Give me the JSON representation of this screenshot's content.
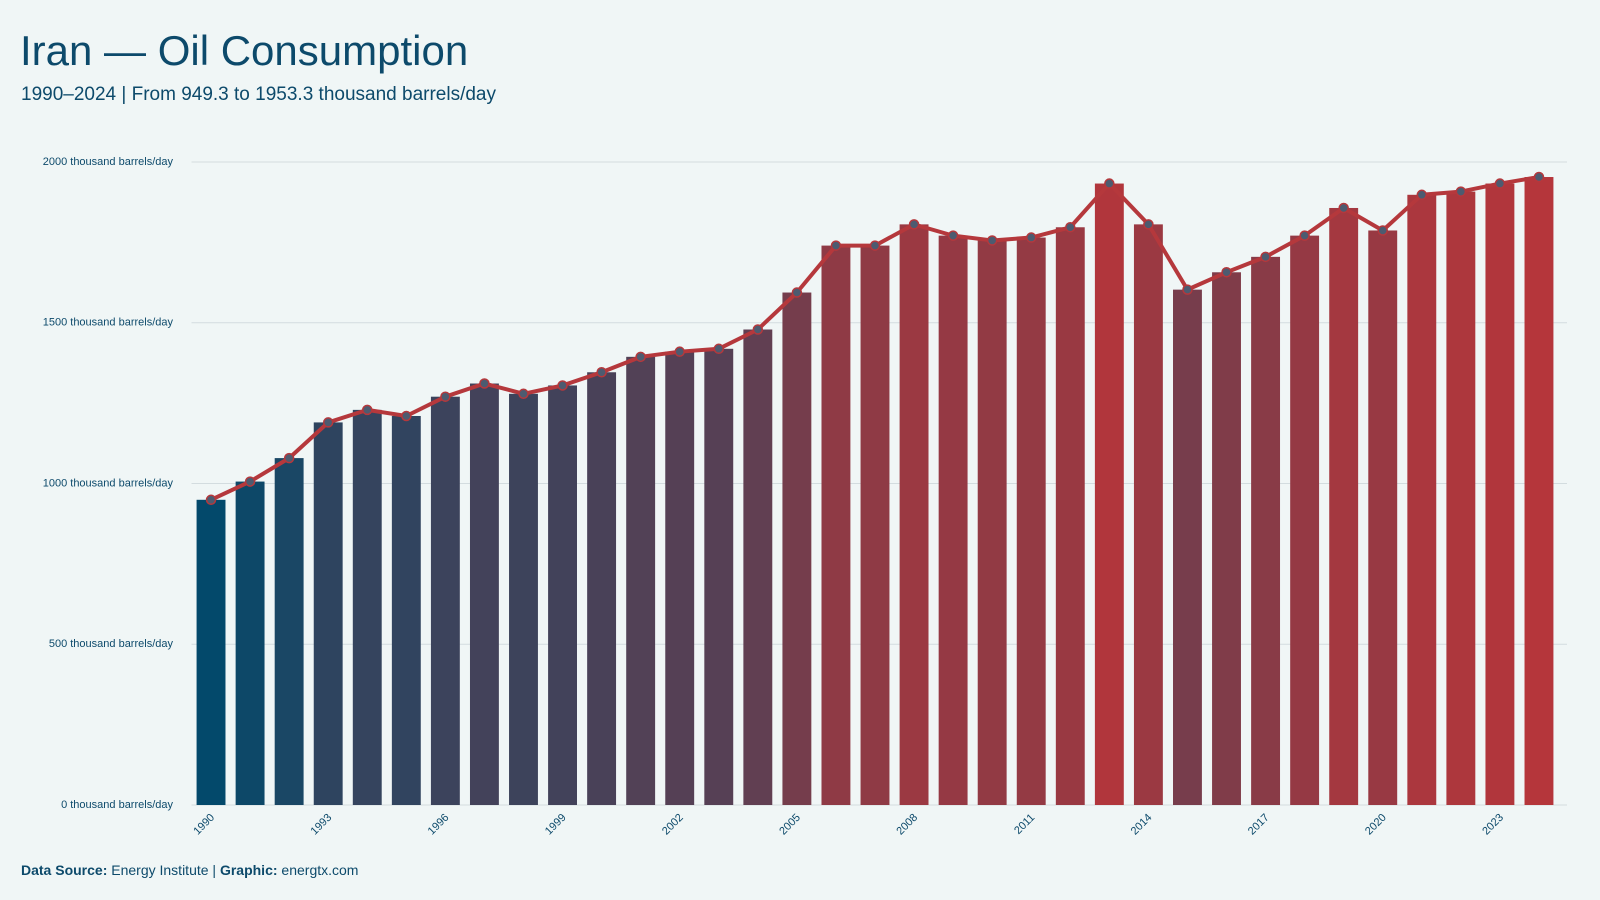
{
  "chart_data": {
    "type": "bar_line",
    "title": "Iran — Oil Consumption",
    "subtitle": "1990–2024 | From 949.3 to 1953.3 thousand barrels/day",
    "x": [
      1990,
      1991,
      1992,
      1993,
      1994,
      1995,
      1996,
      1997,
      1998,
      1999,
      2000,
      2001,
      2002,
      2003,
      2004,
      2005,
      2006,
      2007,
      2008,
      2009,
      2010,
      2011,
      2012,
      2013,
      2014,
      2015,
      2016,
      2017,
      2018,
      2019,
      2020,
      2021,
      2022,
      2023,
      2024
    ],
    "values": [
      949.3,
      1006,
      1079,
      1190,
      1229,
      1210,
      1270,
      1311,
      1279,
      1305,
      1346,
      1394,
      1410,
      1419,
      1479,
      1594,
      1740,
      1740,
      1806,
      1771,
      1756,
      1765,
      1797,
      1933,
      1806,
      1603,
      1657,
      1705,
      1771,
      1857,
      1787,
      1898,
      1908,
      1933,
      1953.3
    ],
    "xlim": [
      1989.5,
      2024.5
    ],
    "xticks": [
      1990,
      1993,
      1996,
      1999,
      2002,
      2005,
      2008,
      2011,
      2014,
      2017,
      2020,
      2023
    ],
    "ylim": [
      0,
      2000
    ],
    "yticks": [
      {
        "value": 0,
        "label": "0 thousand barrels/day"
      },
      {
        "value": 500,
        "label": "500 thousand barrels/day"
      },
      {
        "value": 1000,
        "label": "1000 thousand barrels/day"
      },
      {
        "value": 1500,
        "label": "1500 thousand barrels/day"
      },
      {
        "value": 2000,
        "label": "2000 thousand barrels/day"
      }
    ],
    "grid": true,
    "bar_color_scale": [
      "#03496b",
      "#b5363b"
    ],
    "line_color": "#b5383c",
    "marker_color": "#4d5b70",
    "source_label": "Data Source:",
    "source": "Energy Institute",
    "separator": "|",
    "graphic_label": "Graphic:",
    "graphic": "energtx.com"
  }
}
